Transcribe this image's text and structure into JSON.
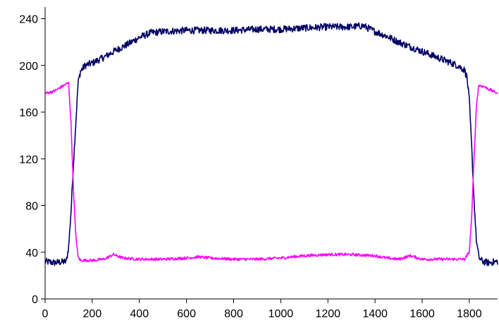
{
  "chart_data": {
    "type": "line",
    "title": "",
    "xlabel": "",
    "ylabel": "",
    "xlim": [
      0,
      1920
    ],
    "ylim": [
      0,
      250
    ],
    "x_ticks": [
      0,
      200,
      400,
      600,
      800,
      1000,
      1200,
      1400,
      1600,
      1800
    ],
    "y_ticks": [
      0,
      40,
      80,
      120,
      160,
      200,
      240
    ],
    "x_tick_labels": [
      "0",
      "200",
      "400",
      "600",
      "800",
      "1000",
      "1200",
      "1400",
      "1600",
      "1800"
    ],
    "y_tick_labels": [
      "0",
      "40",
      "80",
      "120",
      "160",
      "200",
      "240"
    ],
    "grid": false,
    "legend": "none",
    "series": [
      {
        "color": "#000066",
        "x": [
          0,
          40,
          90,
          100,
          110,
          120,
          130,
          140,
          150,
          170,
          200,
          250,
          300,
          350,
          400,
          450,
          500,
          600,
          700,
          800,
          900,
          1000,
          1100,
          1200,
          1300,
          1350,
          1400,
          1450,
          1500,
          1550,
          1600,
          1650,
          1700,
          1750,
          1780,
          1790,
          1800,
          1810,
          1820,
          1830,
          1840,
          1850,
          1860,
          1880,
          1920
        ],
        "y": [
          32,
          31,
          32,
          45,
          75,
          115,
          150,
          185,
          195,
          200,
          202,
          207,
          213,
          218,
          224,
          228,
          229,
          230,
          230,
          230,
          231,
          231,
          232,
          233,
          233,
          234,
          229,
          225,
          220,
          216,
          212,
          208,
          204,
          200,
          196,
          190,
          170,
          130,
          85,
          50,
          36,
          33,
          32,
          31,
          32
        ],
        "noise": 3
      },
      {
        "color": "#ff00ff",
        "x": [
          0,
          40,
          80,
          100,
          110,
          120,
          130,
          140,
          150,
          200,
          250,
          290,
          330,
          400,
          500,
          600,
          650,
          700,
          800,
          900,
          1000,
          1100,
          1200,
          1300,
          1400,
          1450,
          1500,
          1550,
          1600,
          1700,
          1780,
          1800,
          1810,
          1820,
          1830,
          1840,
          1860,
          1900,
          1920
        ],
        "y": [
          176,
          178,
          183,
          185,
          150,
          95,
          55,
          36,
          33,
          33,
          34,
          38,
          35,
          34,
          34,
          35,
          36,
          35,
          34,
          34,
          35,
          37,
          38,
          38,
          37,
          35,
          34,
          37,
          34,
          34,
          34,
          40,
          70,
          120,
          165,
          183,
          182,
          178,
          176
        ],
        "noise": 1.2
      }
    ]
  }
}
